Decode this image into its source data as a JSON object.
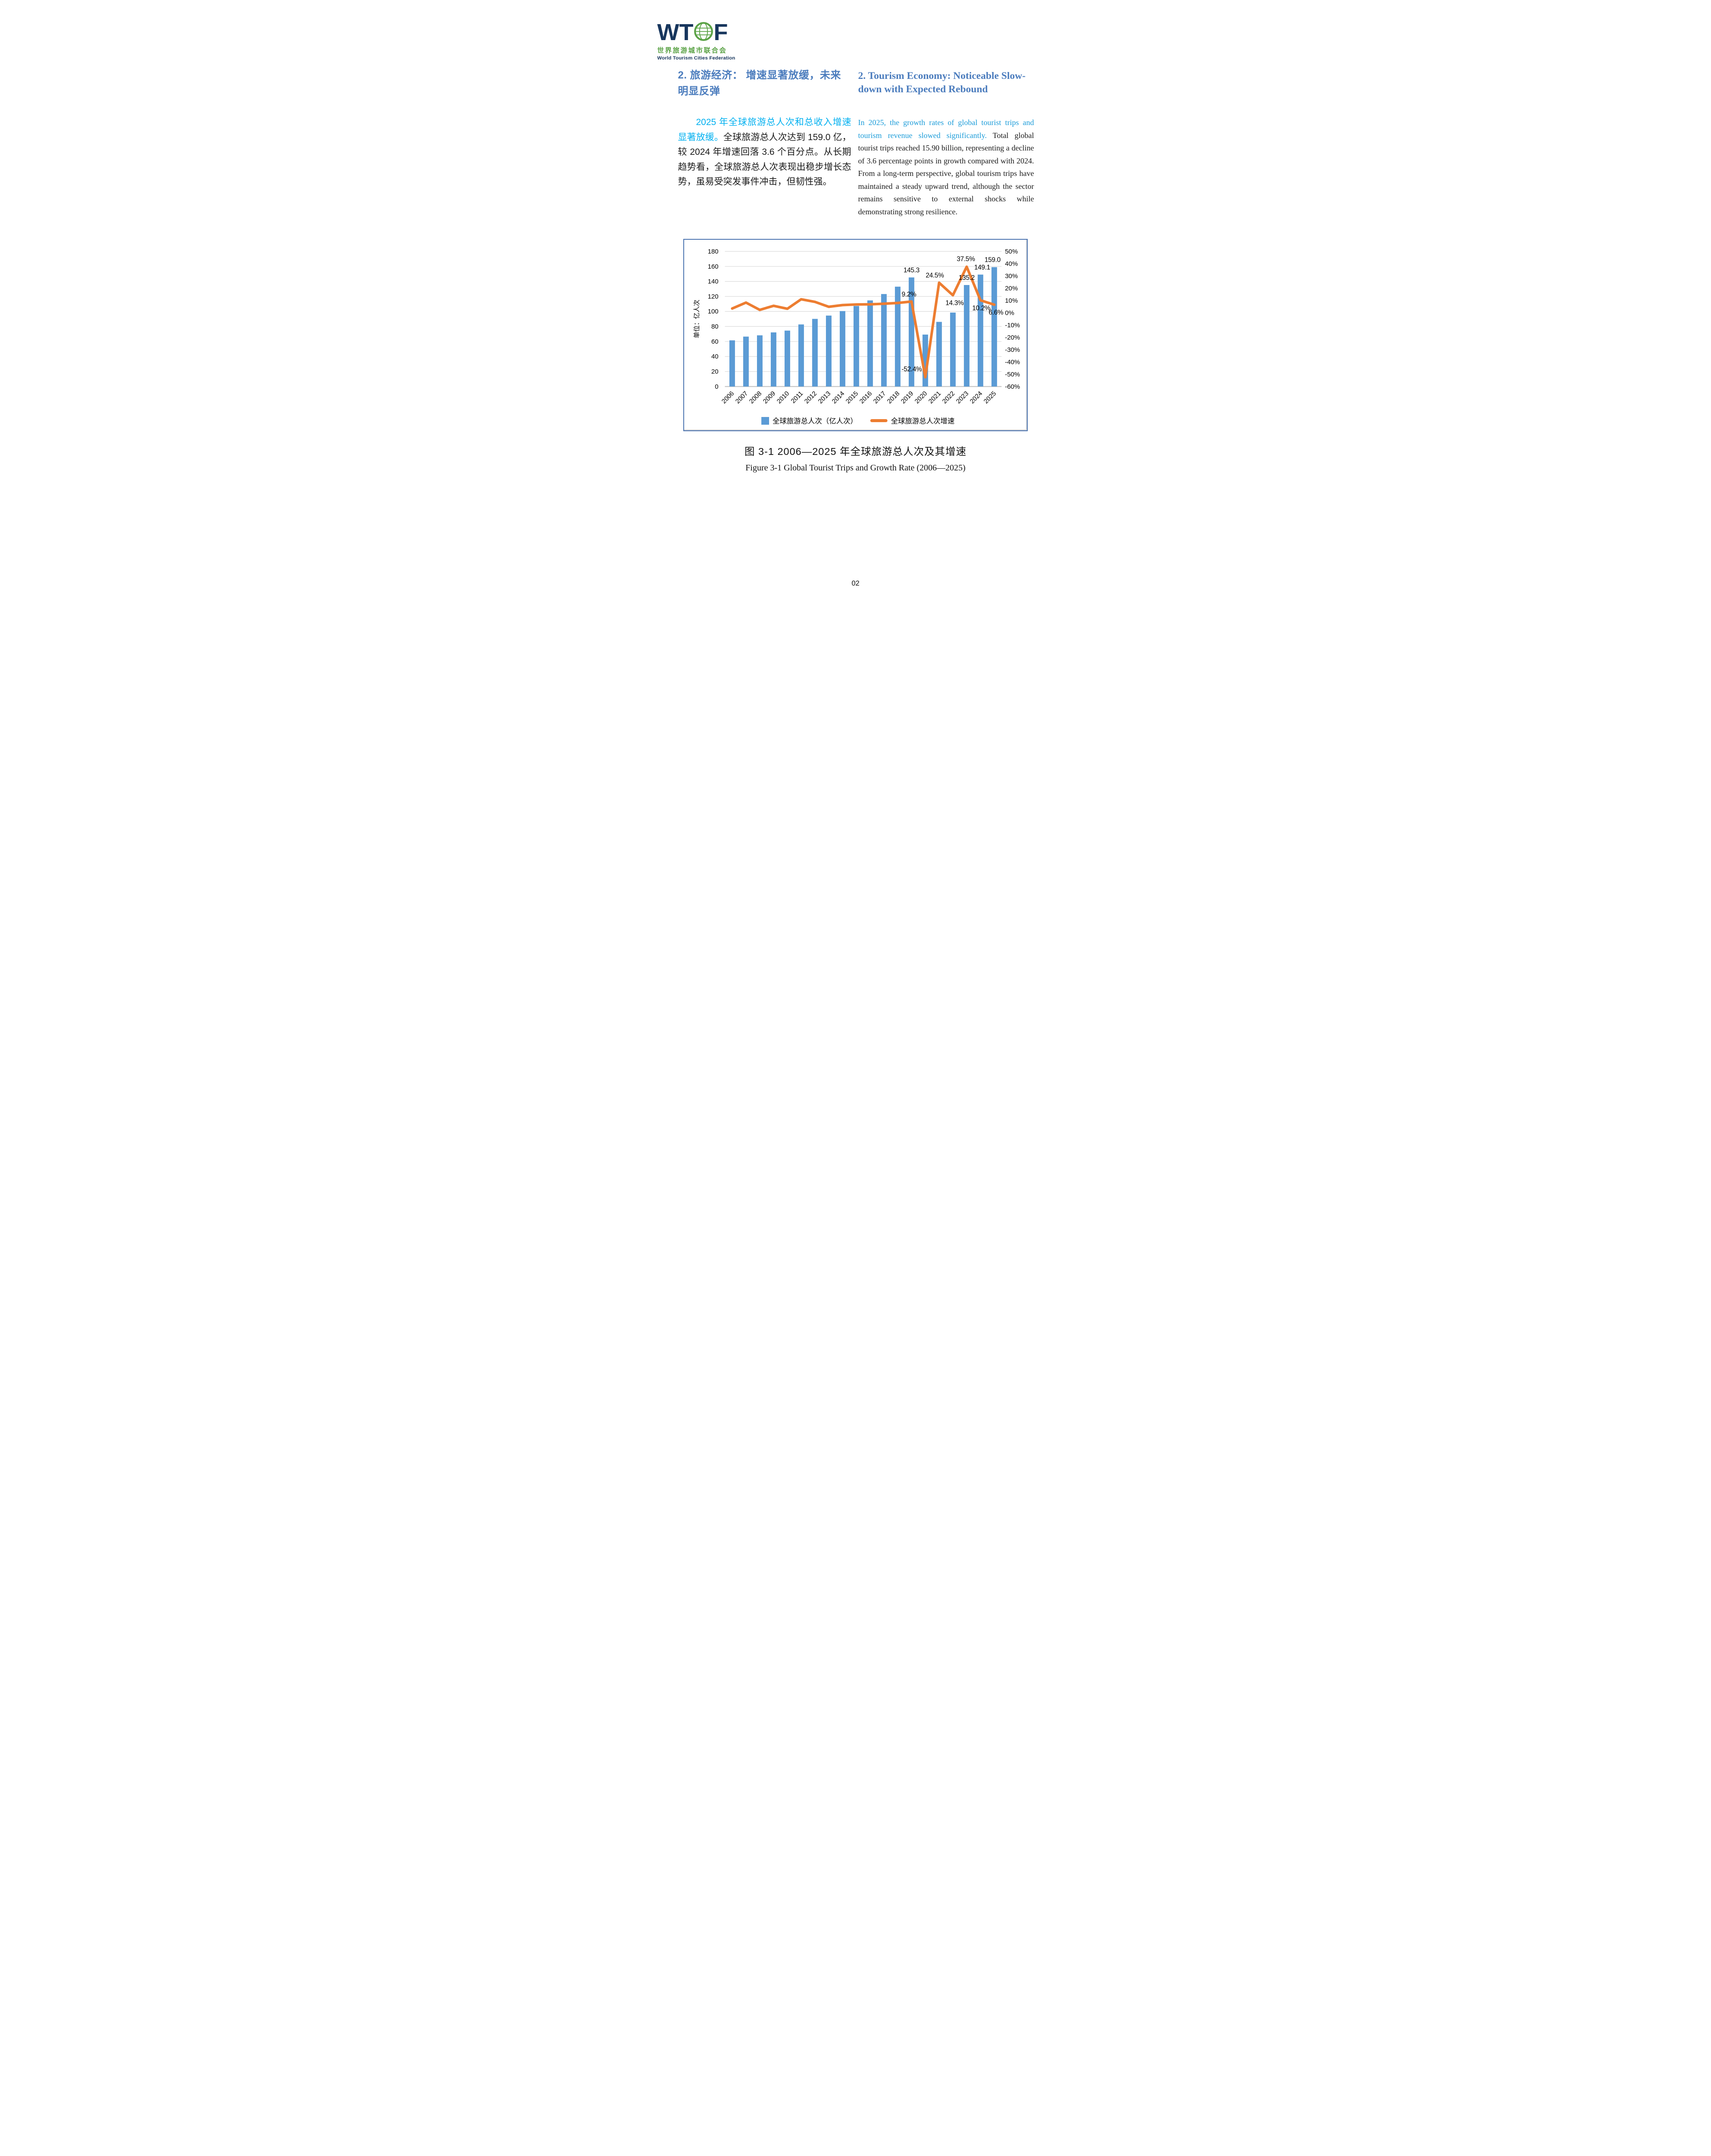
{
  "page_number": "02",
  "logo": {
    "letters_left": "WT",
    "letters_right": "F",
    "chinese_name": "世界旅游城市联合会",
    "english_name": "World Tourism Cities Federation"
  },
  "left_column": {
    "heading": "2. 旅游经济： 增速显著放缓，未来明显反弹",
    "highlight": "2025 年全球旅游总人次和总收入增速显著放缓。",
    "body": "全球旅游总人次达到 159.0 亿，较 2024 年增速回落 3.6 个百分点。从长期趋势看，全球旅游总人次表现出稳步增长态势，虽易受突发事件冲击，但韧性强。"
  },
  "right_column": {
    "heading": "2. Tourism Economy: Noticeable Slow-down with Expected Rebound",
    "highlight": "In 2025, the growth rates of global tourist trips and tourism revenue slowed significantly.",
    "body": " Total global tourist trips reached 15.90 billion, representing a decline of 3.6 percentage points in growth compared with 2024. From a long-term perspective, global tourism trips have maintained a steady upward trend, although the sector remains sensitive to external shocks while demonstrating strong resilience."
  },
  "figure": {
    "caption_zh": "图 3-1 2006—2025 年全球旅游总人次及其增速",
    "caption_en": "Figure 3-1 Global Tourist Trips and Growth Rate (2006—2025)"
  },
  "chart_data": {
    "type": "bar+line combo",
    "categories": [
      "2006",
      "2007",
      "2008",
      "2009",
      "2010",
      "2011",
      "2012",
      "2013",
      "2014",
      "2015",
      "2016",
      "2017",
      "2018",
      "2019",
      "2020",
      "2021",
      "2022",
      "2023",
      "2024",
      "2025"
    ],
    "series": [
      {
        "name": "全球旅游总人次（亿人次）",
        "type": "bar",
        "axis": "left",
        "values": [
          61.5,
          66.5,
          68.2,
          72.1,
          74.5,
          82.7,
          90.1,
          94.5,
          100.5,
          107.3,
          114.7,
          123.2,
          133.0,
          145.3,
          69.2,
          86.1,
          98.5,
          135.2,
          149.1,
          159.0
        ]
      },
      {
        "name": "全球旅游总人次增速",
        "type": "line",
        "axis": "right",
        "values": [
          3.5,
          8.3,
          2.4,
          5.7,
          3.3,
          11.0,
          8.9,
          4.9,
          6.3,
          6.8,
          6.9,
          7.4,
          8.0,
          9.2,
          -52.4,
          24.5,
          14.3,
          37.5,
          10.2,
          6.6
        ]
      }
    ],
    "bar_point_labels": [
      null,
      null,
      null,
      null,
      null,
      null,
      null,
      null,
      null,
      null,
      null,
      null,
      null,
      "145.3",
      null,
      null,
      null,
      "135.2",
      "149.1",
      "159.0"
    ],
    "line_point_labels": [
      null,
      null,
      null,
      null,
      null,
      null,
      null,
      null,
      null,
      null,
      null,
      null,
      null,
      "9.2%",
      "-52.4%",
      "24.5%",
      "14.3%",
      "37.5%",
      "10.2%",
      "6.6%"
    ],
    "left_axis": {
      "title": "单位：亿人次",
      "min": 0,
      "max": 180,
      "step": 20
    },
    "right_axis": {
      "min": -60,
      "max": 50,
      "step": 10,
      "format": "percent"
    },
    "grid": true,
    "legend_position": "bottom",
    "colors": {
      "bar": "#5B9BD5",
      "line": "#ED7D31",
      "grid": "#D9D9D9",
      "axis_line": "#BFBFBF"
    }
  },
  "colors": {
    "heading_accent": "#4B7CBD",
    "highlight_zh": "#00B0F0",
    "highlight_en": "#1B9CD9",
    "logo_navy": "#17365D",
    "logo_green": "#5AA245",
    "chart_border": "#4C74B0"
  }
}
